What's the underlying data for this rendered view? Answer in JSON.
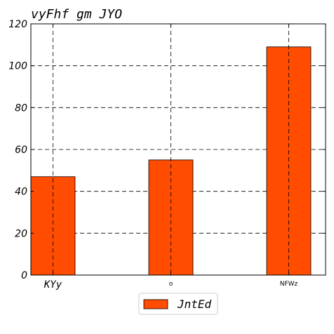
{
  "chart_data": {
    "type": "bar",
    "title": "vyFhf gm JYO",
    "xlabel": "",
    "ylabel": "",
    "categories": [
      "KYy",
      "o",
      "NFWz"
    ],
    "series": [
      {
        "name": "JntEd",
        "values": [
          47,
          55,
          109
        ],
        "color": "#ff4c00"
      }
    ],
    "ylim": [
      0,
      120
    ],
    "yticks": [
      0,
      20,
      40,
      60,
      80,
      100,
      120
    ],
    "grid": true,
    "legend_position": "bottom-center"
  }
}
